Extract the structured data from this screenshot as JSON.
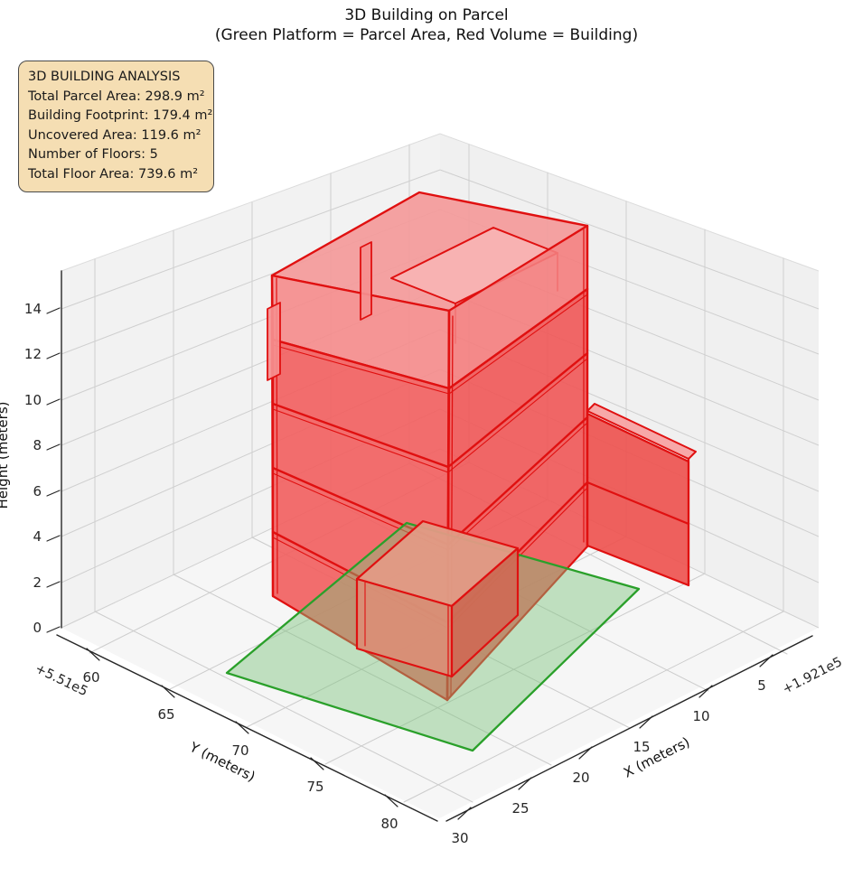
{
  "title": {
    "line1": "3D Building on Parcel",
    "line2": "(Green Platform = Parcel Area, Red Volume = Building)"
  },
  "annotation_box": {
    "heading": "3D BUILDING ANALYSIS",
    "lines": [
      "Total Parcel Area: 298.9 m²",
      "Building Footprint: 179.4 m²",
      "Uncovered Area: 119.6 m²",
      "Number of Floors: 5",
      "Total Floor Area: 739.6 m²"
    ]
  },
  "chart_data": {
    "type": "other",
    "projection": "3d",
    "title": "3D Building on Parcel",
    "subtitle": "(Green Platform = Parcel Area, Red Volume = Building)",
    "x_axis": {
      "label": "X (meters)",
      "ticks": [
        30,
        25,
        20,
        15,
        10,
        5
      ],
      "offset": "+1.921e5"
    },
    "y_axis": {
      "label": "Y (meters)",
      "ticks": [
        60,
        65,
        70,
        75,
        80
      ],
      "offset": "+5.51e5"
    },
    "z_axis": {
      "label": "Height (meters)",
      "ticks": [
        0,
        2,
        4,
        6,
        8,
        10,
        12,
        14
      ]
    },
    "parcel": {
      "total_area_m2": 298.9,
      "uncovered_area_m2": 119.6,
      "fill_color": "#7dc37d",
      "edge_color": "#2aa02a"
    },
    "building": {
      "footprint_m2": 179.4,
      "number_of_floors": 5,
      "floor_height_m": 3,
      "total_floor_area_m2": 739.6,
      "fill_color": "#f25e5e",
      "edge_color": "#e01010"
    },
    "legend_note": "Green Platform = Parcel Area, Red Volume = Building",
    "grid": true
  }
}
